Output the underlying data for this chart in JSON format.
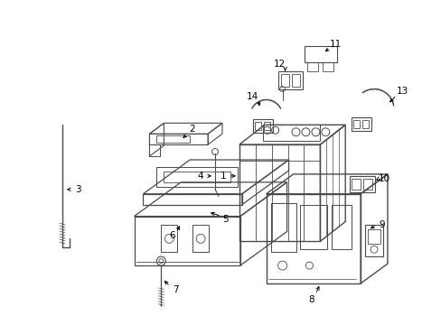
{
  "background_color": "#ffffff",
  "line_color": "#4a4a4a",
  "text_color": "#000000",
  "figure_width": 4.89,
  "figure_height": 3.6,
  "dpi": 100
}
